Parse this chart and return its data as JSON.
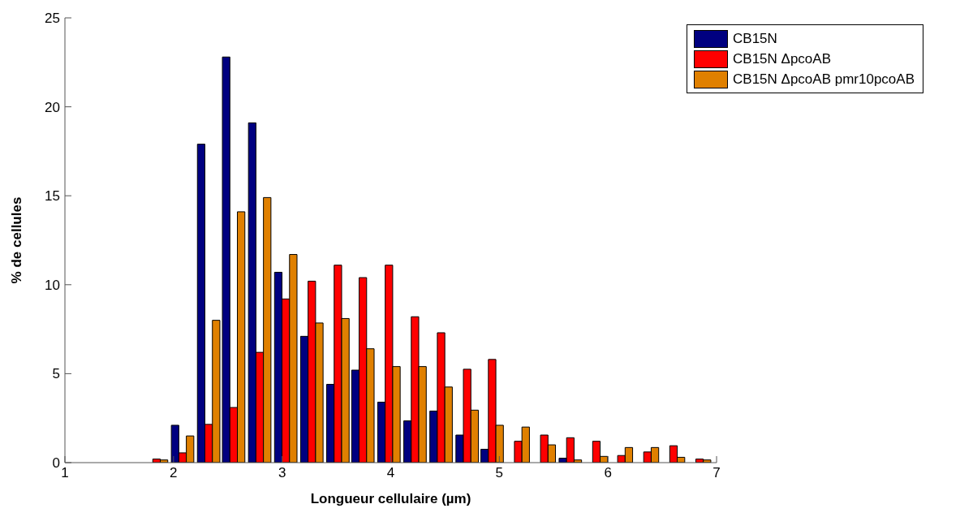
{
  "chart_data": {
    "type": "bar",
    "xlabel": "Longueur cellulaire (µm)",
    "ylabel": "% de cellules",
    "x": [
      1.84,
      2.08,
      2.32,
      2.55,
      2.79,
      3.03,
      3.27,
      3.51,
      3.74,
      3.98,
      4.22,
      4.46,
      4.7,
      4.93,
      5.17,
      5.41,
      5.65,
      5.89,
      6.12,
      6.36,
      6.6,
      6.84
    ],
    "series": [
      {
        "name": "CB15N",
        "color": "#000080",
        "values": [
          0,
          2.1,
          17.9,
          22.8,
          19.1,
          10.7,
          7.1,
          4.4,
          5.2,
          3.4,
          2.35,
          2.9,
          1.55,
          0.75,
          0,
          0,
          0.25,
          0,
          0,
          0,
          0,
          0
        ]
      },
      {
        "name": "CB15N ΔpcoAB",
        "color": "#ff0000",
        "values": [
          0.2,
          0.55,
          2.15,
          3.1,
          6.2,
          9.2,
          10.2,
          11.1,
          10.4,
          11.1,
          8.2,
          7.3,
          5.25,
          5.8,
          1.2,
          1.55,
          1.4,
          1.2,
          0.4,
          0.6,
          0.95,
          0.2
        ]
      },
      {
        "name": "CB15N ΔpcoAB pmr10pcoAB",
        "color": "#e08000",
        "values": [
          0.15,
          1.5,
          8.0,
          14.1,
          14.9,
          11.7,
          7.85,
          8.1,
          6.4,
          5.4,
          5.4,
          4.25,
          2.95,
          2.1,
          2.0,
          1.0,
          0.15,
          0.35,
          0.85,
          0.85,
          0.3,
          0.15
        ]
      }
    ],
    "xlim": [
      1,
      7
    ],
    "xticks": [
      1,
      2,
      3,
      4,
      5,
      6,
      7
    ],
    "ylim": [
      0,
      25
    ],
    "yticks": [
      0,
      5,
      10,
      15,
      20,
      25
    ],
    "grid": false,
    "legend": "top right"
  }
}
